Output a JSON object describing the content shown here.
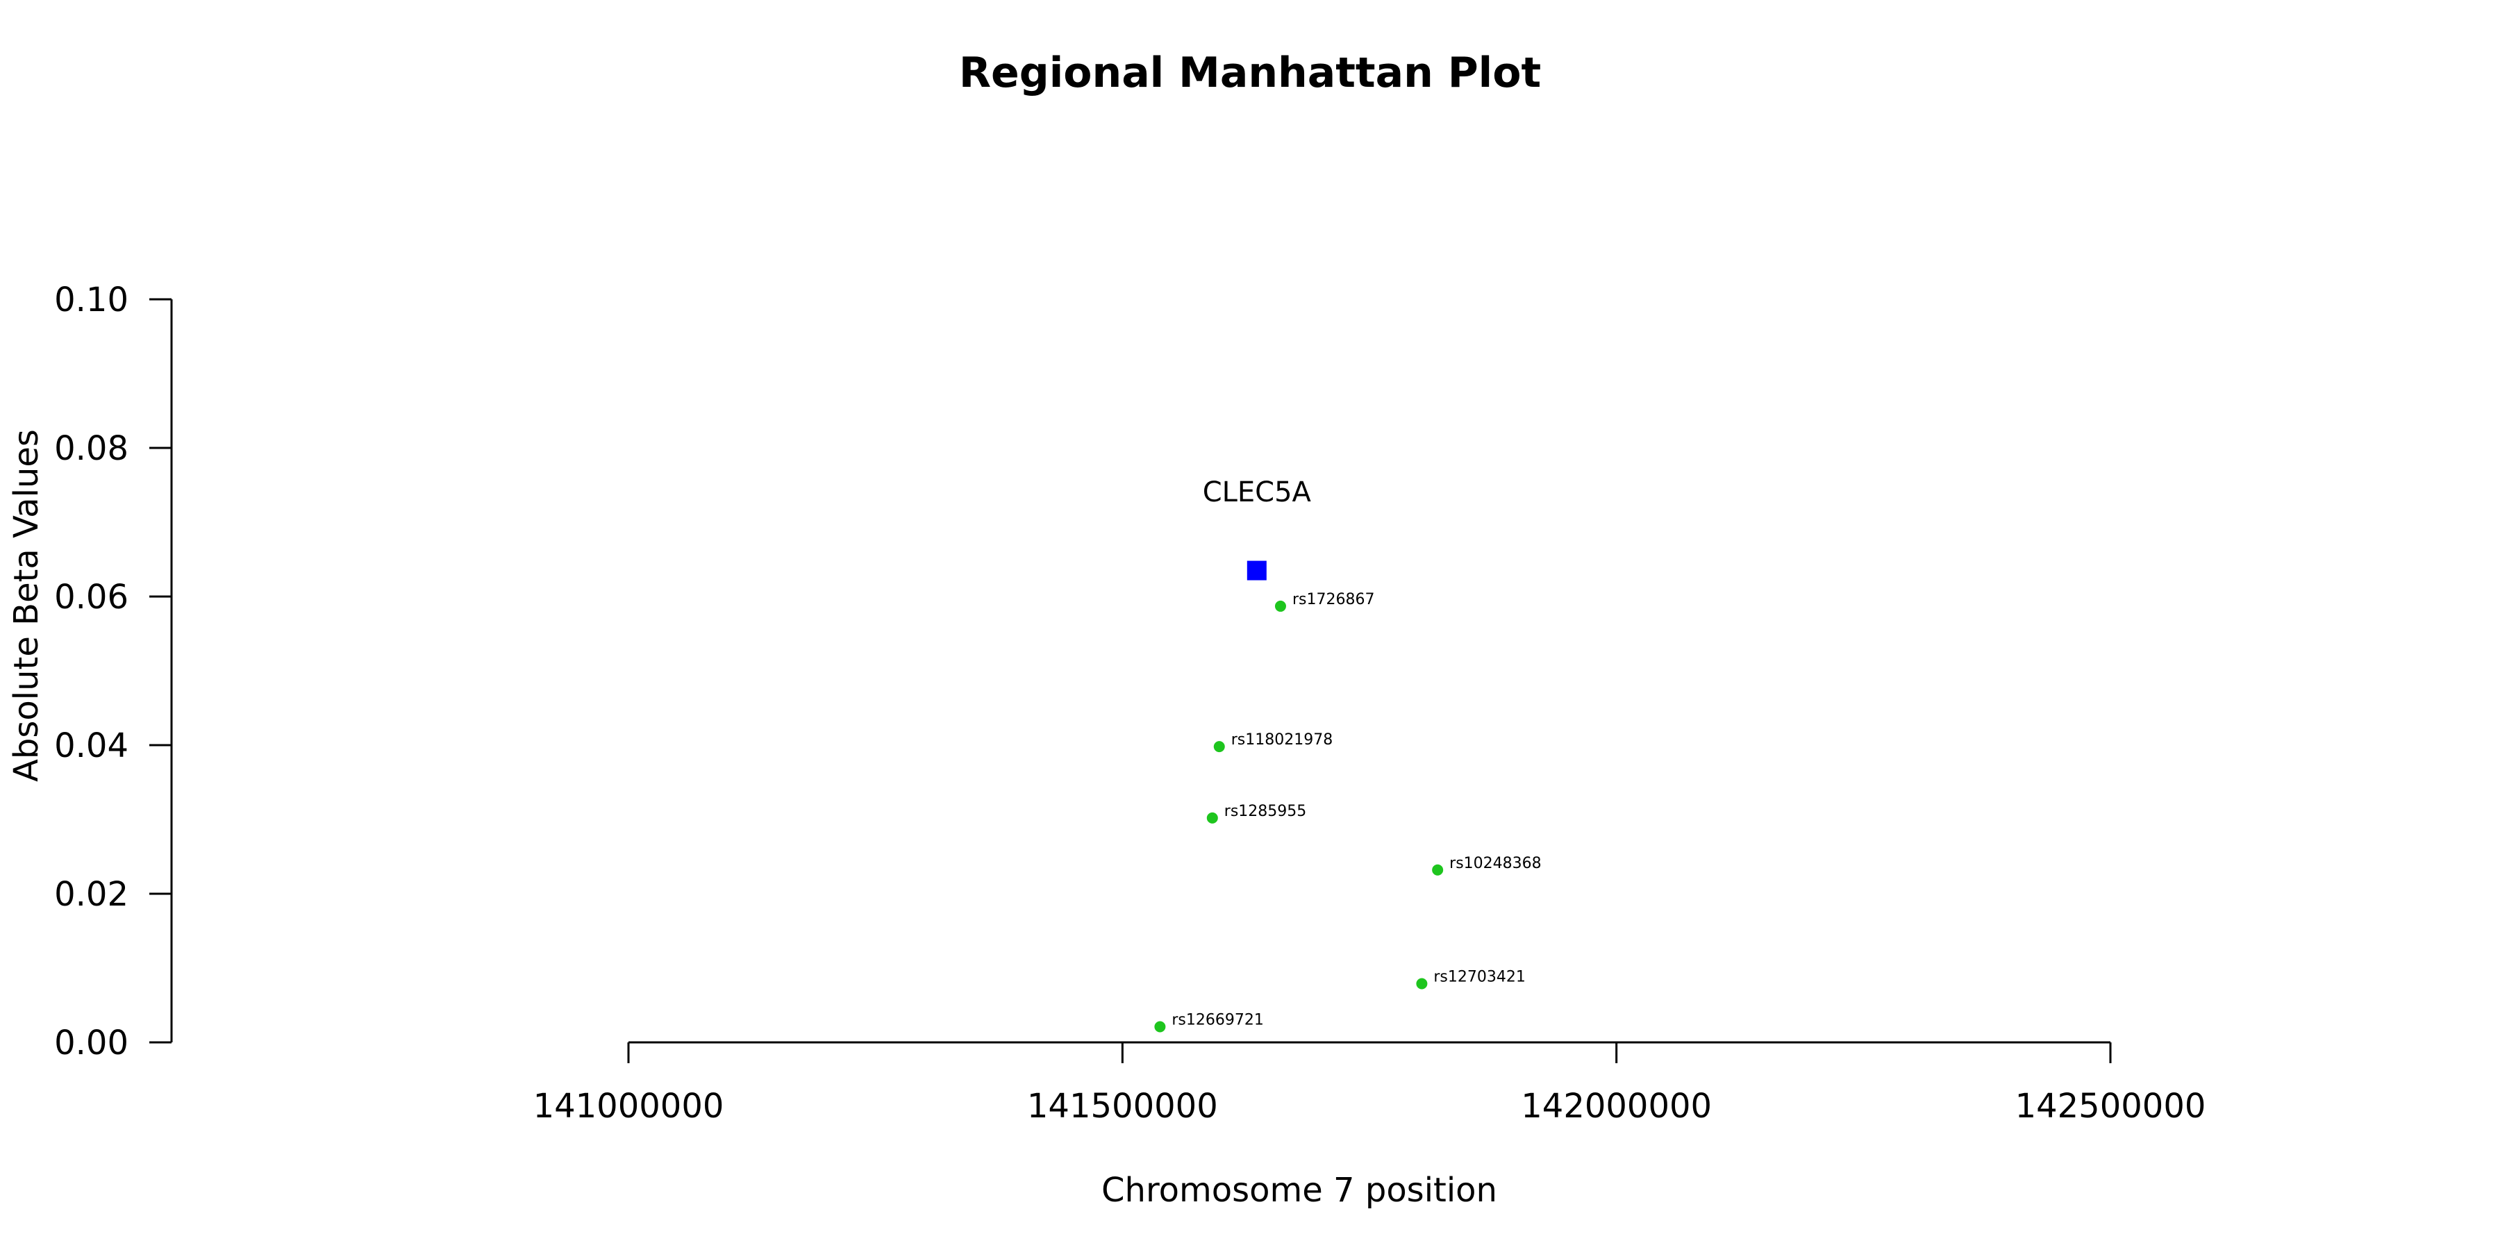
{
  "chart_data": {
    "type": "scatter",
    "title": "Regional Manhattan Plot",
    "xlabel": "Chromosome 7 position",
    "ylabel": "Absolute Beta Values",
    "xlim": [
      141000000,
      142500000
    ],
    "ylim": [
      0.0,
      0.1
    ],
    "x_ticks": [
      141000000,
      141500000,
      142000000,
      142500000
    ],
    "x_tick_labels": [
      "141000000",
      "141500000",
      "142000000",
      "142500000"
    ],
    "y_ticks": [
      0.0,
      0.02,
      0.04,
      0.06,
      0.08,
      0.1
    ],
    "y_tick_labels": [
      "0.00",
      "0.02",
      "0.04",
      "0.06",
      "0.08",
      "0.10"
    ],
    "grid": false,
    "gene": {
      "name": "CLEC5A",
      "x": 141636000,
      "y": 0.0635,
      "color": "#0000ff",
      "marker": "square"
    },
    "snp_color": "#1ec51e",
    "snps": [
      {
        "name": "rs1726867",
        "x": 141660000,
        "y": 0.0587
      },
      {
        "name": "rs118021978",
        "x": 141598000,
        "y": 0.0398
      },
      {
        "name": "rs1285955",
        "x": 141591000,
        "y": 0.0302
      },
      {
        "name": "rs10248368",
        "x": 141819000,
        "y": 0.0232
      },
      {
        "name": "rs12703421",
        "x": 141803000,
        "y": 0.0079
      },
      {
        "name": "rs12669721",
        "x": 141538000,
        "y": 0.0021
      }
    ]
  }
}
